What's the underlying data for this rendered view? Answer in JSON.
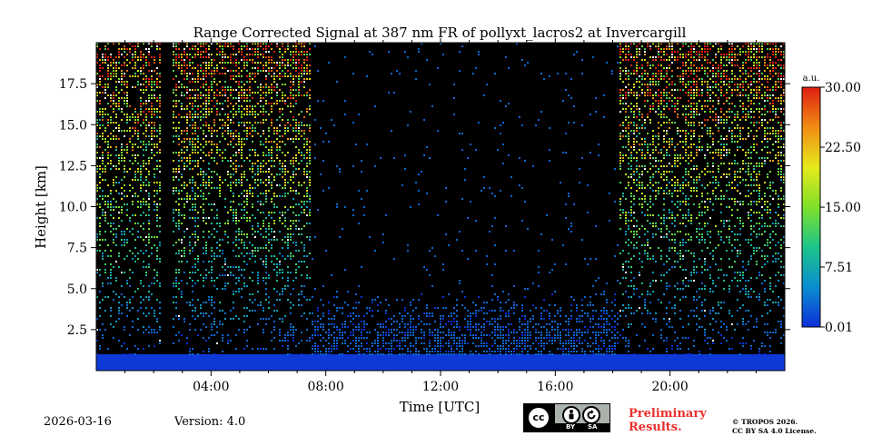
{
  "chart_data": {
    "type": "heatmap",
    "title": "Range Corrected Signal at 387 nm FR of pollyxt_lacros2 at Invercargill",
    "xlabel": "Time [UTC]",
    "ylabel": "Height [km]",
    "xlim": [
      0,
      24
    ],
    "ylim": [
      0,
      20
    ],
    "x_ticks": [
      {
        "value": 4,
        "label": "04:00"
      },
      {
        "value": 8,
        "label": "08:00"
      },
      {
        "value": 12,
        "label": "12:00"
      },
      {
        "value": 16,
        "label": "16:00"
      },
      {
        "value": 20,
        "label": "20:00"
      }
    ],
    "y_ticks": [
      {
        "value": 2.5,
        "label": "2.5"
      },
      {
        "value": 5.0,
        "label": "5.0"
      },
      {
        "value": 7.5,
        "label": "7.5"
      },
      {
        "value": 10.0,
        "label": "10.0"
      },
      {
        "value": 12.5,
        "label": "12.5"
      },
      {
        "value": 15.0,
        "label": "15.0"
      },
      {
        "value": 17.5,
        "label": "17.5"
      }
    ],
    "colorbar": {
      "unit": "a.u.",
      "min": 0.01,
      "max": 30.0,
      "ticks": [
        {
          "value": 0.01,
          "label": "0.01"
        },
        {
          "value": 7.51,
          "label": "7.51"
        },
        {
          "value": 15.0,
          "label": "15.00"
        },
        {
          "value": 22.5,
          "label": "22.50"
        },
        {
          "value": 30.0,
          "label": "30.00"
        }
      ],
      "colormap": [
        "#0d2fd8",
        "#0a8ed0",
        "#1cc48a",
        "#7fe02a",
        "#e6ea1c",
        "#f08c14",
        "#e01e12"
      ]
    },
    "signal_profile": {
      "surface_layer_top_km": 1.0,
      "daytime_noise_free_window_utc": [
        7.5,
        18.2
      ],
      "data_gap_utc": [
        2.2,
        2.6
      ],
      "daytime_aerosol_top_km": 2.5,
      "nighttime_noise_level": "high above 5 km"
    },
    "background_color": "#000000"
  },
  "footer": {
    "date": "2026-03-16",
    "version": "Version: 4.0",
    "preliminary_line1": "Preliminary",
    "preliminary_line2": "Results.",
    "copyright_line1": "© TROPOS 2026.",
    "copyright_line2": "CC BY SA 4.0 License.",
    "license_badge": {
      "main": "cc",
      "by": "BY",
      "sa": "SA"
    }
  }
}
